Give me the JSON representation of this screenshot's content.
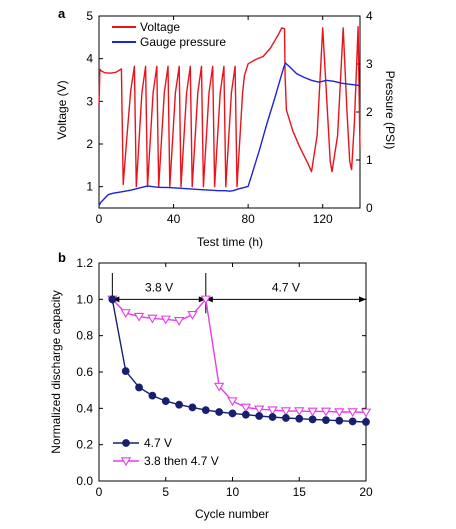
{
  "chart_data": [
    {
      "type": "line",
      "panel_label": "a",
      "xlabel": "Test time (h)",
      "ylabel": "Voltage (V)",
      "y2label": "Pressure (PSI)",
      "xlim": [
        0,
        140
      ],
      "ylim": [
        0.5,
        5
      ],
      "y2lim": [
        0,
        4
      ],
      "xticks": [
        0,
        40,
        80,
        120
      ],
      "yticks": [
        1,
        2,
        3,
        4,
        5
      ],
      "y2ticks": [
        0,
        1,
        2,
        3,
        4
      ],
      "legend_position": "top-left",
      "series": [
        {
          "name": "Voltage",
          "axis": "left",
          "color": "#e8141b",
          "x": [
            0,
            0.5,
            1,
            3,
            6,
            9,
            12,
            13,
            15,
            17,
            19,
            20,
            21.5,
            23,
            25,
            26,
            27.5,
            29,
            31,
            32,
            33.5,
            35,
            37,
            38,
            39.5,
            41,
            43,
            44,
            45.5,
            47,
            49,
            50,
            51.5,
            53,
            55,
            56,
            57.5,
            59,
            61,
            62,
            63.5,
            65,
            67,
            68,
            69.5,
            71,
            73,
            74,
            75.5,
            77,
            78,
            80,
            84,
            88,
            92,
            96,
            98,
            99.5,
            99.8,
            100.5,
            104,
            108,
            112,
            114,
            117,
            120,
            123,
            124,
            125,
            128,
            131,
            133,
            134.5,
            135.5,
            137,
            139,
            140
          ],
          "y": [
            2.9,
            3.75,
            3.72,
            3.67,
            3.66,
            3.68,
            3.76,
            1.05,
            2.2,
            3.25,
            3.82,
            1.0,
            2.1,
            3.2,
            3.82,
            1.0,
            2.1,
            3.2,
            3.82,
            1.0,
            2.1,
            3.2,
            3.82,
            1.0,
            2.1,
            3.2,
            3.82,
            1.0,
            2.1,
            3.2,
            3.82,
            1.0,
            2.1,
            3.2,
            3.82,
            1.0,
            2.1,
            3.2,
            3.82,
            1.0,
            2.1,
            3.2,
            3.82,
            1.0,
            2.1,
            3.2,
            3.82,
            1.0,
            2.1,
            3.2,
            3.6,
            3.88,
            3.98,
            4.05,
            4.25,
            4.55,
            4.72,
            4.7,
            3.6,
            2.8,
            2.3,
            1.9,
            1.55,
            1.35,
            2.2,
            4.72,
            2.4,
            1.6,
            1.35,
            2.2,
            4.72,
            2.8,
            1.6,
            1.4,
            2.5,
            4.75,
            1.85
          ]
        },
        {
          "name": "Gauge pressure",
          "axis": "right",
          "color": "#1c25d4",
          "x": [
            0,
            1,
            3,
            5,
            8,
            11,
            14,
            17,
            20,
            22,
            24,
            26,
            28,
            30,
            33,
            36,
            40,
            44,
            48,
            52,
            56,
            60,
            64,
            68,
            70,
            72,
            75,
            78,
            80,
            82,
            86,
            90,
            94,
            97,
            99,
            100,
            102,
            106,
            110,
            114,
            118,
            122,
            126,
            130,
            134,
            138,
            140
          ],
          "y": [
            0.05,
            0.12,
            0.2,
            0.28,
            0.31,
            0.33,
            0.35,
            0.37,
            0.4,
            0.42,
            0.44,
            0.46,
            0.45,
            0.44,
            0.43,
            0.43,
            0.42,
            0.41,
            0.4,
            0.39,
            0.38,
            0.37,
            0.36,
            0.36,
            0.35,
            0.36,
            0.4,
            0.43,
            0.45,
            0.7,
            1.2,
            1.75,
            2.25,
            2.65,
            2.92,
            3.02,
            2.95,
            2.8,
            2.72,
            2.66,
            2.62,
            2.66,
            2.64,
            2.6,
            2.58,
            2.56,
            2.55
          ]
        }
      ]
    },
    {
      "type": "line",
      "panel_label": "b",
      "xlabel": "Cycle number",
      "ylabel": "Normalized discharge capacity",
      "xlim": [
        0,
        20
      ],
      "ylim": [
        0.0,
        1.2
      ],
      "xticks": [
        0,
        5,
        10,
        15,
        20
      ],
      "yticks": [
        0.0,
        0.2,
        0.4,
        0.6,
        0.8,
        1.0,
        1.2
      ],
      "legend_position": "bottom-left",
      "annotations": [
        {
          "text": "3.8 V",
          "x_from": 1,
          "x_to": 8,
          "y": 1.0
        },
        {
          "text": "4.7 V",
          "x_from": 8,
          "x_to": 20,
          "y": 1.0
        }
      ],
      "series": [
        {
          "name": "4.7 V",
          "color": "#16206e",
          "marker": "circle",
          "x": [
            1,
            2,
            3,
            4,
            5,
            6,
            7,
            8,
            9,
            10,
            11,
            12,
            13,
            14,
            15,
            16,
            17,
            18,
            19,
            20
          ],
          "y": [
            1.0,
            0.605,
            0.515,
            0.47,
            0.44,
            0.42,
            0.405,
            0.39,
            0.38,
            0.372,
            0.365,
            0.358,
            0.352,
            0.347,
            0.343,
            0.339,
            0.335,
            0.332,
            0.328,
            0.325
          ]
        },
        {
          "name": "3.8 then 4.7 V",
          "color": "#e83ce8",
          "marker": "triangle-down",
          "x": [
            1,
            2,
            3,
            4,
            5,
            6,
            7,
            8,
            9,
            10,
            11,
            12,
            13,
            14,
            15,
            16,
            17,
            18,
            19,
            20
          ],
          "y": [
            1.0,
            0.925,
            0.905,
            0.895,
            0.89,
            0.882,
            0.915,
            1.0,
            0.52,
            0.44,
            0.405,
            0.395,
            0.39,
            0.385,
            0.385,
            0.383,
            0.383,
            0.38,
            0.38,
            0.378
          ]
        }
      ]
    }
  ]
}
